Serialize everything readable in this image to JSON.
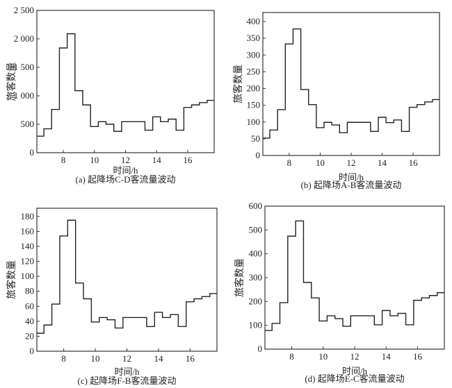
{
  "chart_data": [
    {
      "type": "line",
      "step": true,
      "title": "(a) 起降场C-D客流量波动",
      "xlabel": "时间/h",
      "ylabel": "旅客数量",
      "xlim": [
        6.3,
        17.7
      ],
      "ylim": [
        0,
        2500
      ],
      "xticks": [
        8,
        10,
        12,
        14,
        16
      ],
      "yticks": [
        0,
        500,
        1000,
        1500,
        2000,
        2500
      ],
      "ytick_labels": [
        "0",
        "500",
        "1 000",
        "1 500",
        "2 000",
        "2 500"
      ],
      "bin_edges": [
        6.25,
        6.75,
        7.25,
        7.75,
        8.25,
        8.75,
        9.25,
        9.75,
        10.25,
        10.75,
        11.25,
        11.75,
        12.25,
        12.75,
        13.25,
        13.75,
        14.25,
        14.75,
        15.25,
        15.75,
        16.25,
        16.75,
        17.25,
        17.75
      ],
      "values": [
        290,
        420,
        760,
        1840,
        2090,
        1090,
        840,
        460,
        545,
        500,
        375,
        545,
        545,
        545,
        395,
        630,
        545,
        590,
        395,
        795,
        840,
        880,
        920
      ]
    },
    {
      "type": "line",
      "step": true,
      "title": "(b) 起降场A-B客流量波动",
      "xlabel": "时间/h",
      "ylabel": "旅客数量",
      "xlim": [
        6.3,
        17.7
      ],
      "ylim": [
        0,
        427
      ],
      "xticks": [
        8,
        10,
        12,
        14,
        16
      ],
      "yticks": [
        0,
        50,
        100,
        150,
        200,
        250,
        300,
        350,
        400
      ],
      "ytick_labels": [
        "0",
        "50",
        "100",
        "150",
        "200",
        "250",
        "300",
        "350",
        "400"
      ],
      "bin_edges": [
        6.25,
        6.75,
        7.25,
        7.75,
        8.25,
        8.75,
        9.25,
        9.75,
        10.25,
        10.75,
        11.25,
        11.75,
        12.25,
        12.75,
        13.25,
        13.75,
        14.25,
        14.75,
        15.25,
        15.75,
        16.25,
        16.75,
        17.25,
        17.75
      ],
      "values": [
        52,
        76,
        137,
        333,
        378,
        197,
        152,
        83,
        99,
        91,
        68,
        99,
        99,
        99,
        72,
        114,
        98,
        106,
        72,
        144,
        152,
        160,
        167
      ]
    },
    {
      "type": "line",
      "step": true,
      "title": "(c) 起降场F-B客流量波动",
      "xlabel": "时间/h",
      "ylabel": "旅客数量",
      "xlim": [
        6.3,
        17.7
      ],
      "ylim": [
        0,
        191
      ],
      "xticks": [
        8,
        10,
        12,
        14,
        16
      ],
      "yticks": [
        0,
        20,
        40,
        60,
        80,
        100,
        120,
        140,
        160,
        180
      ],
      "ytick_labels": [
        "0",
        "20",
        "40",
        "60",
        "80",
        "100",
        "120",
        "140",
        "160",
        "180"
      ],
      "bin_edges": [
        6.25,
        6.75,
        7.25,
        7.75,
        8.25,
        8.75,
        9.25,
        9.75,
        10.25,
        10.75,
        11.25,
        11.75,
        12.25,
        12.75,
        13.25,
        13.75,
        14.25,
        14.75,
        15.25,
        15.75,
        16.25,
        16.75,
        17.25,
        17.75
      ],
      "values": [
        24,
        35,
        63,
        154,
        175,
        91,
        70,
        39,
        45,
        42,
        31,
        45,
        45,
        45,
        33,
        52,
        45,
        49,
        33,
        66,
        70,
        73,
        77
      ]
    },
    {
      "type": "line",
      "step": true,
      "title": "(d) 起降场E-C客流量波动",
      "xlabel": "时间/h",
      "ylabel": "旅客数量",
      "xlim": [
        6.3,
        17.7
      ],
      "ylim": [
        0,
        600
      ],
      "xticks": [
        8,
        10,
        12,
        14,
        16
      ],
      "yticks": [
        0,
        100,
        200,
        300,
        400,
        500,
        600
      ],
      "ytick_labels": [
        "0",
        "100",
        "200",
        "300",
        "400",
        "500",
        "600"
      ],
      "bin_edges": [
        6.25,
        6.75,
        7.25,
        7.75,
        8.25,
        8.75,
        9.25,
        9.75,
        10.25,
        10.75,
        11.25,
        11.75,
        12.25,
        12.75,
        13.25,
        13.75,
        14.25,
        14.75,
        15.25,
        15.75,
        16.25,
        16.75,
        17.25,
        17.75
      ],
      "values": [
        78,
        108,
        195,
        474,
        538,
        280,
        215,
        118,
        140,
        128,
        96,
        140,
        140,
        140,
        102,
        162,
        140,
        150,
        102,
        205,
        215,
        225,
        237
      ]
    }
  ]
}
